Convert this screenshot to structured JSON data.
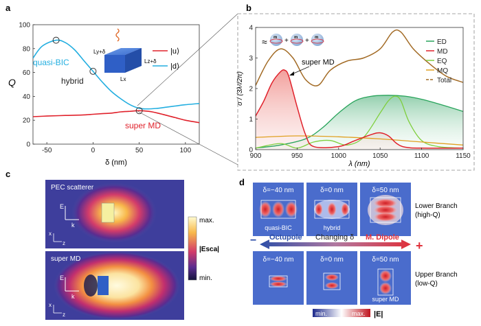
{
  "panel_labels": {
    "a": "a",
    "b": "b",
    "c": "c",
    "d": "d"
  },
  "colors": {
    "red": "#e0202a",
    "cyan": "#22aee0",
    "green": "#27a35a",
    "lightgreen": "#7fcf3e",
    "gold": "#e0a020",
    "brown": "#a26a24"
  },
  "panel_a": {
    "ylabel": "Q",
    "xlabel": "δ (nm)",
    "legend": [
      "|u⟩",
      "|d⟩"
    ],
    "annotations": {
      "quasi_bic": "quasi-BIC",
      "hybrid": "hybrid",
      "super_md": "super MD"
    },
    "inset_labels": {
      "ly": "Ly+δ",
      "lz": "Lz+δ",
      "lx": "Lx"
    }
  },
  "panel_b": {
    "ylabel": "σ / (3λ²/2π)",
    "xlabel": "λ (nm)",
    "legend": [
      "ED",
      "MD",
      "EQ",
      "MQ",
      "Total"
    ],
    "annotation": "super MD",
    "approx": "≈",
    "plus": "+",
    "m": "m"
  },
  "panel_c": {
    "top_label": "PEC scatterer",
    "bottom_label": "super MD",
    "colorbar_max": "max.",
    "colorbar_min": "min.",
    "colorbar_label": "|Esca|",
    "axis_e": "E",
    "axis_k": "k",
    "axis_x": "x",
    "axis_z": "z"
  },
  "panel_d": {
    "top_labels": [
      "δ=−40 nm",
      "δ=0 nm",
      "δ=50 nm"
    ],
    "top_names": [
      "quasi-BIC",
      "hybrid"
    ],
    "bottom_labels": [
      "δ=−40 nm",
      "δ=0 nm",
      "δ=50 nm"
    ],
    "bottom_name": "super MD",
    "lower_branch": [
      "Lower Branch",
      "(high-Q)"
    ],
    "upper_branch": [
      "Upper Branch",
      "(low-Q)"
    ],
    "arrow_left": "Octupole",
    "arrow_mid": "Changing δ",
    "arrow_right": "M. Dipole",
    "minus": "−",
    "plus": "+",
    "cbar_min": "min.",
    "cbar_max": "max.",
    "cbar_label": "|E|"
  },
  "chart_data": [
    {
      "type": "line",
      "title": "",
      "xlabel": "δ (nm)",
      "ylabel": "Q",
      "xlim": [
        -65,
        115
      ],
      "ylim": [
        0,
        100
      ],
      "xticks": [
        -50,
        0,
        50,
        100
      ],
      "yticks": [
        0,
        20,
        40,
        60,
        80,
        100
      ],
      "series": [
        {
          "name": "|d⟩",
          "color": "#22aee0",
          "x": [
            -65,
            -55,
            -40,
            -30,
            -20,
            -10,
            0,
            10,
            20,
            30,
            40,
            50,
            60,
            70,
            80,
            90,
            100,
            115
          ],
          "y": [
            72,
            82,
            87,
            85,
            79,
            70,
            61,
            52,
            44,
            38,
            33,
            30,
            29.5,
            30,
            31,
            32,
            33,
            34
          ]
        },
        {
          "name": "|u⟩",
          "color": "#e0202a",
          "x": [
            -65,
            -50,
            -30,
            -10,
            0,
            10,
            20,
            30,
            40,
            50,
            60,
            70,
            80,
            90,
            100,
            115
          ],
          "y": [
            23,
            23.5,
            24,
            24.5,
            25,
            25.5,
            26,
            27,
            27.5,
            28,
            27.5,
            26,
            24,
            22,
            20,
            18
          ]
        }
      ],
      "markers": [
        {
          "x": -40,
          "y": 87
        },
        {
          "x": 0,
          "y": 61
        },
        {
          "x": 50,
          "y": 28
        }
      ]
    },
    {
      "type": "line",
      "title": "",
      "xlabel": "λ (nm)",
      "ylabel": "σ / (3λ²/2π)",
      "xlim": [
        900,
        1150
      ],
      "ylim": [
        0,
        4
      ],
      "xticks": [
        900,
        950,
        1000,
        1050,
        1100,
        1150
      ],
      "yticks": [
        0,
        1,
        2,
        3,
        4
      ],
      "series": [
        {
          "name": "ED",
          "color": "#27a35a",
          "x": [
            900,
            930,
            960,
            980,
            1000,
            1020,
            1040,
            1060,
            1080,
            1100,
            1120,
            1150
          ],
          "y": [
            0.05,
            0.15,
            0.35,
            0.7,
            1.2,
            1.6,
            1.75,
            1.78,
            1.75,
            1.65,
            1.5,
            1.25
          ]
        },
        {
          "name": "MD",
          "color": "#e0202a",
          "x": [
            900,
            910,
            920,
            930,
            935,
            940,
            950,
            960,
            970,
            1000,
            1020,
            1040,
            1050,
            1060,
            1070,
            1080,
            1100,
            1150
          ],
          "y": [
            1.1,
            1.6,
            2.2,
            2.55,
            2.6,
            2.4,
            1.4,
            0.5,
            0.1,
            0.1,
            0.3,
            0.5,
            0.55,
            0.45,
            0.2,
            0.08,
            0.05,
            0.05
          ]
        },
        {
          "name": "EQ",
          "color": "#7fcf3e",
          "x": [
            900,
            930,
            950,
            970,
            990,
            1010,
            1030,
            1050,
            1060,
            1068,
            1075,
            1085,
            1100,
            1120,
            1150
          ],
          "y": [
            0.05,
            0.2,
            0.05,
            0.25,
            0.3,
            0.15,
            0.4,
            1.2,
            1.6,
            1.75,
            1.6,
            0.9,
            0.3,
            0.1,
            0.05
          ]
        },
        {
          "name": "MQ",
          "color": "#e0a020",
          "x": [
            900,
            950,
            1000,
            1050,
            1100,
            1150
          ],
          "y": [
            0.4,
            0.45,
            0.42,
            0.35,
            0.25,
            0.15
          ]
        },
        {
          "name": "Total",
          "color": "#a26a24",
          "x": [
            900,
            915,
            930,
            945,
            960,
            975,
            990,
            1010,
            1030,
            1050,
            1065,
            1075,
            1090,
            1110,
            1130,
            1150
          ],
          "y": [
            2.1,
            2.9,
            3.3,
            3.0,
            2.3,
            2.1,
            2.6,
            2.9,
            3.0,
            3.3,
            3.85,
            3.85,
            3.3,
            2.8,
            2.4,
            2.2
          ]
        }
      ]
    }
  ]
}
